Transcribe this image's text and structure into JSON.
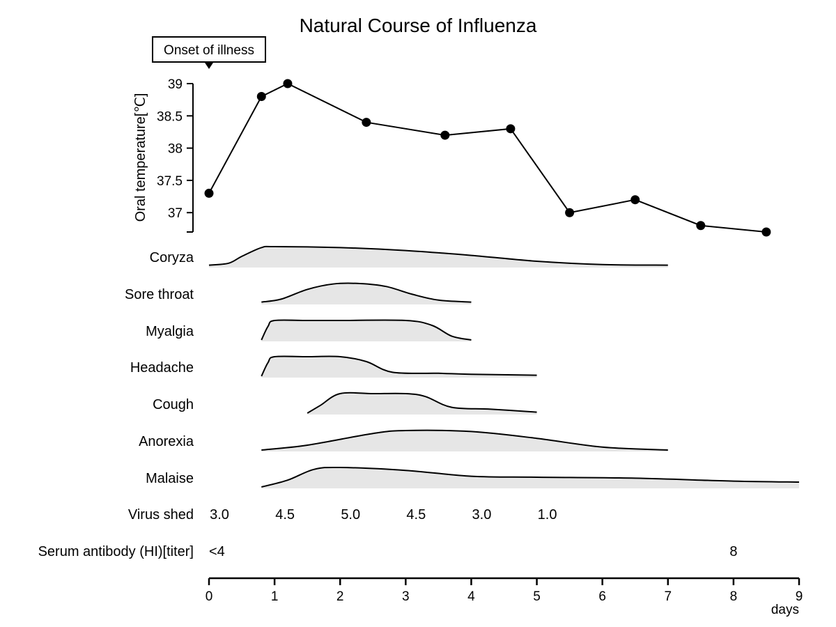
{
  "chart_data": {
    "type": "line",
    "title": "Natural Course of Influenza",
    "onset_annotation": "Onset of illness",
    "temperature": {
      "ylabel": "Oral temperature[℃]",
      "yticks": [
        "39",
        "38.5",
        "38",
        "37.5",
        "37"
      ],
      "ytick_values": [
        39,
        38.5,
        38,
        37.5,
        37
      ],
      "ylim": [
        36.7,
        39
      ],
      "x": [
        0,
        0.8,
        1.2,
        2.4,
        3.6,
        4.6,
        5.5,
        6.5,
        7.5,
        8.5
      ],
      "y": [
        37.3,
        38.8,
        39.0,
        38.4,
        38.2,
        38.3,
        37.0,
        37.2,
        36.8,
        36.7
      ]
    },
    "symptoms": [
      {
        "label": "Coryza",
        "x": [
          0,
          0.3,
          0.5,
          0.8,
          1.0,
          2.0,
          3.0,
          4.0,
          5.0,
          6.0,
          7.0
        ],
        "v": [
          0.05,
          0.15,
          0.5,
          0.95,
          1.0,
          0.95,
          0.8,
          0.55,
          0.25,
          0.08,
          0.05
        ]
      },
      {
        "label": "Sore throat",
        "x": [
          0.8,
          1.1,
          1.5,
          1.9,
          2.3,
          2.7,
          3.1,
          3.5,
          4.0
        ],
        "v": [
          0.05,
          0.2,
          0.7,
          0.98,
          1.0,
          0.85,
          0.45,
          0.15,
          0.05
        ]
      },
      {
        "label": "Myalgia",
        "x": [
          0.8,
          0.9,
          1.0,
          1.5,
          2.0,
          3.0,
          3.4,
          3.7,
          4.0
        ],
        "v": [
          0.0,
          0.7,
          1.0,
          1.0,
          1.0,
          1.0,
          0.75,
          0.2,
          0.0
        ]
      },
      {
        "label": "Headache",
        "x": [
          0.8,
          0.9,
          1.0,
          1.5,
          2.0,
          2.4,
          2.8,
          3.5,
          4.0,
          5.0
        ],
        "v": [
          0.0,
          0.7,
          1.0,
          1.0,
          1.0,
          0.75,
          0.2,
          0.15,
          0.1,
          0.05
        ]
      },
      {
        "label": "Cough",
        "x": [
          1.5,
          1.7,
          2.0,
          2.5,
          3.0,
          3.3,
          3.7,
          4.3,
          5.0
        ],
        "v": [
          0.0,
          0.4,
          1.0,
          1.0,
          1.0,
          0.85,
          0.3,
          0.2,
          0.05
        ]
      },
      {
        "label": "Anorexia",
        "x": [
          0.8,
          1.5,
          2.5,
          3.0,
          4.0,
          5.0,
          6.0,
          7.0
        ],
        "v": [
          0.0,
          0.25,
          0.85,
          1.0,
          0.95,
          0.6,
          0.15,
          0.0
        ]
      },
      {
        "label": "Malaise",
        "x": [
          0.8,
          1.2,
          1.6,
          2.0,
          3.0,
          4.0,
          5.0,
          6.5,
          8.0,
          9.0
        ],
        "v": [
          0.0,
          0.35,
          0.9,
          1.0,
          0.85,
          0.55,
          0.5,
          0.45,
          0.3,
          0.25
        ]
      }
    ],
    "virus_shed": {
      "label": "Virus shed",
      "x": [
        0,
        1,
        2,
        3,
        4,
        5
      ],
      "values": [
        "3.0",
        "4.5",
        "5.0",
        "4.5",
        "3.0",
        "1.0"
      ]
    },
    "serum_antibody": {
      "label": "Serum antibody (HI)[titer]",
      "x": [
        0,
        8
      ],
      "values": [
        "<4",
        "8"
      ]
    },
    "xaxis": {
      "ticks": [
        "0",
        "1",
        "2",
        "3",
        "4",
        "5",
        "6",
        "7",
        "8",
        "9"
      ],
      "tick_values": [
        0,
        1,
        2,
        3,
        4,
        5,
        6,
        7,
        8,
        9
      ],
      "xlim": [
        0,
        9
      ],
      "unit_label": "days"
    },
    "grid": false,
    "colors": {
      "line": "#000000",
      "fill": "#e6e6e6"
    }
  }
}
